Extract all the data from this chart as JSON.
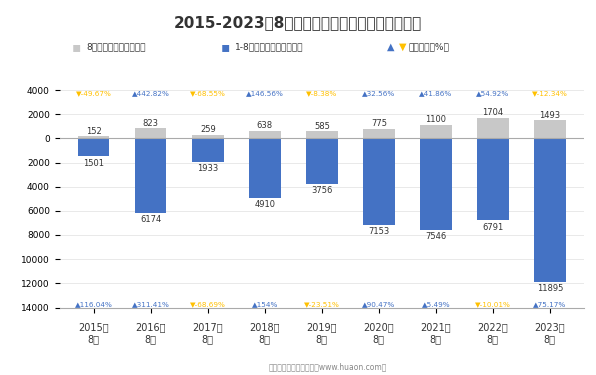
{
  "title": "2015-2023年8月郑州商品交易所棉花期货成交量",
  "categories": [
    "2015年\n8月",
    "2016年\n8月",
    "2017年\n8月",
    "2018年\n8月",
    "2019年\n8月",
    "2020年\n8月",
    "2021年\n8月",
    "2022年\n8月",
    "2023年\n8月"
  ],
  "aug_values": [
    152,
    823,
    259,
    638,
    585,
    775,
    1100,
    1704,
    1493
  ],
  "cumul_values": [
    1501,
    6174,
    1933,
    4910,
    3756,
    7153,
    7546,
    6791,
    11895
  ],
  "aug_growth": [
    "-49.67%",
    "442.82%",
    "-68.55%",
    "146.56%",
    "-8.38%",
    "32.56%",
    "41.86%",
    "54.92%",
    "-12.34%"
  ],
  "aug_growth_up": [
    false,
    true,
    false,
    true,
    false,
    true,
    true,
    true,
    false
  ],
  "cumul_growth": [
    "116.04%",
    "311.41%",
    "-68.69%",
    "154%",
    "-23.51%",
    "90.47%",
    "5.49%",
    "-10.01%",
    "75.17%"
  ],
  "cumul_growth_up": [
    true,
    true,
    false,
    true,
    false,
    true,
    true,
    false,
    true
  ],
  "aug_color": "#c8c8c8",
  "cumul_color": "#4472c4",
  "up_color_aug": "#ffc000",
  "down_color_aug": "#4472c4",
  "up_color_cumul": "#4472c4",
  "down_color_cumul": "#ffc000",
  "background_color": "#ffffff",
  "title_fontsize": 11,
  "footer": "制图：华经产业研究院（www.huaon.com）"
}
